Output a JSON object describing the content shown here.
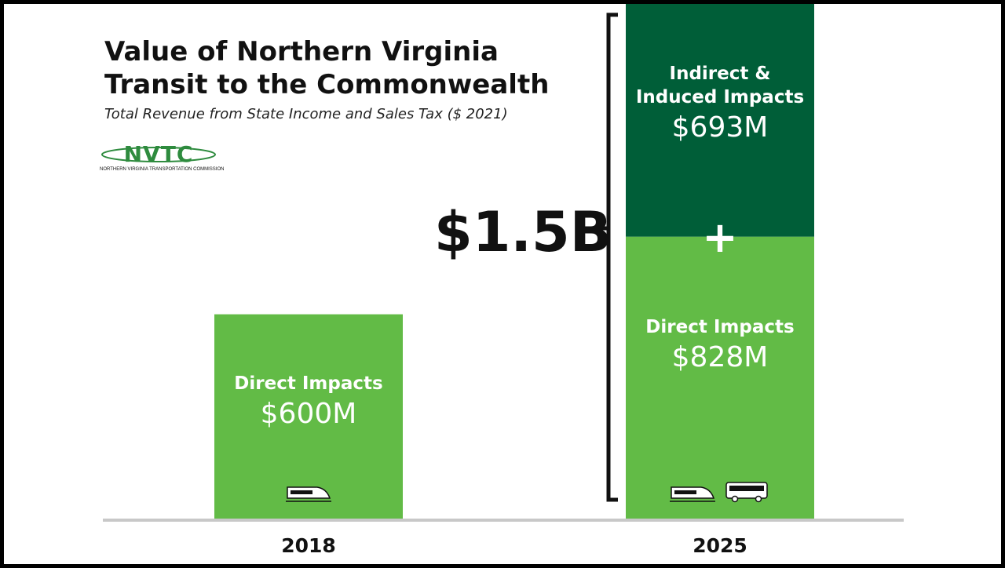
{
  "title": "Value of Northern Virginia Transit to the Commonwealth",
  "subtitle": "Total Revenue from State Income and Sales Tax ($ 2021)",
  "logo": {
    "name": "NVTC",
    "tagline": "NORTHERN VIRGINIA TRANSPORTATION COMMISSION"
  },
  "colors": {
    "direct": "#62bb46",
    "indirect": "#005e38",
    "axis": "#c8c8c8",
    "text": "#111111"
  },
  "chart_data": {
    "type": "bar",
    "stacked": true,
    "categories": [
      "2018",
      "2025"
    ],
    "series": [
      {
        "name": "Direct Impacts",
        "values": [
          600,
          828
        ],
        "labels": [
          "$600M",
          "$828M"
        ]
      },
      {
        "name": "Indirect & Induced Impacts",
        "values": [
          0,
          693
        ],
        "labels": [
          "",
          "$693M"
        ]
      }
    ],
    "total_annotation": {
      "category": "2025",
      "label": "$1.5B",
      "plus_sign": "+"
    },
    "icons": [
      {
        "category": "2018",
        "items": [
          "train-icon"
        ]
      },
      {
        "category": "2025",
        "items": [
          "train-icon",
          "bus-icon"
        ]
      }
    ]
  }
}
